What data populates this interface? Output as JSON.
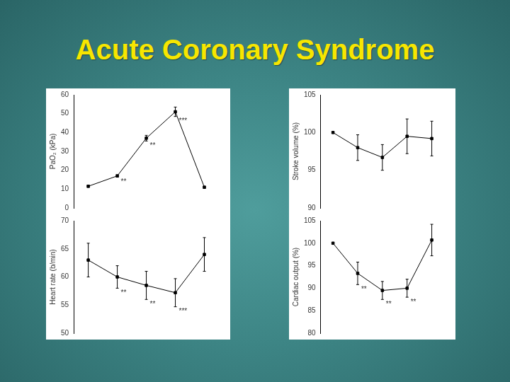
{
  "slide": {
    "title": "Acute Coronary Syndrome"
  },
  "chart_data": [
    {
      "type": "line",
      "y_label": "PaO₂ (kPa)",
      "categories": [
        null,
        null,
        null,
        null,
        null
      ],
      "values": [
        11.5,
        17,
        37,
        51,
        11
      ],
      "errors": [
        0.5,
        0.6,
        1.5,
        2.5,
        0.5
      ],
      "significance": [
        null,
        "**",
        "**",
        "***",
        null
      ],
      "ylim": [
        0,
        60
      ],
      "yticks": [
        0,
        10,
        20,
        30,
        40,
        50,
        60
      ],
      "color": "#000000",
      "marker": "square",
      "tick_labels": "y",
      "grid": false
    },
    {
      "type": "line",
      "y_label": "Stroke volume (%)",
      "categories": [
        null,
        null,
        null,
        null,
        null
      ],
      "values": [
        100,
        98,
        96.7,
        99.5,
        99.2
      ],
      "errors": [
        0,
        1.7,
        1.7,
        2.3,
        2.3
      ],
      "significance": [
        null,
        null,
        null,
        null,
        null
      ],
      "ylim": [
        90,
        105
      ],
      "yticks": [
        90,
        95,
        100,
        105
      ],
      "color": "#000000",
      "marker": "square",
      "tick_labels": "y",
      "grid": false
    },
    {
      "type": "line",
      "y_label": "Heart rate (b/min)",
      "categories": [
        null,
        null,
        null,
        null,
        null
      ],
      "values": [
        63,
        60,
        58.5,
        57.2,
        64
      ],
      "errors": [
        3,
        2,
        2.5,
        2.5,
        3
      ],
      "significance": [
        null,
        "**",
        "**",
        "***",
        null
      ],
      "ylim": [
        50,
        70
      ],
      "yticks": [
        50,
        55,
        60,
        65,
        70
      ],
      "color": "#000000",
      "marker": "square",
      "tick_labels": "y",
      "grid": false
    },
    {
      "type": "line",
      "y_label": "Cardiac output (%)",
      "categories": [
        null,
        null,
        null,
        null,
        null
      ],
      "values": [
        100,
        93.3,
        89.5,
        90,
        100.7
      ],
      "errors": [
        0,
        2.5,
        2,
        2,
        3.5
      ],
      "significance": [
        null,
        "**",
        "**",
        "**",
        null
      ],
      "ylim": [
        80,
        105
      ],
      "yticks": [
        80,
        85,
        90,
        95,
        100,
        105
      ],
      "color": "#000000",
      "marker": "square",
      "tick_labels": "y",
      "grid": false
    }
  ]
}
